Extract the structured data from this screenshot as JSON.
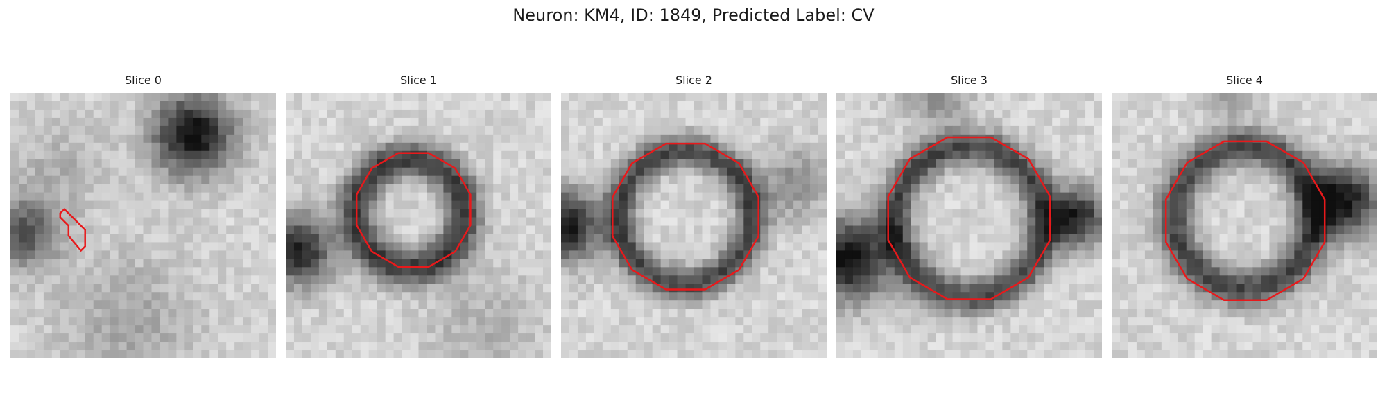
{
  "figure": {
    "title": "Neuron: KM4, ID: 1849, Predicted Label: CV"
  },
  "colors": {
    "contour": "#e8191b",
    "background": "#ffffff"
  },
  "panels": [
    {
      "title": "Slice 0"
    },
    {
      "title": "Slice 1"
    },
    {
      "title": "Slice 2"
    },
    {
      "title": "Slice 3"
    },
    {
      "title": "Slice 4"
    }
  ]
}
